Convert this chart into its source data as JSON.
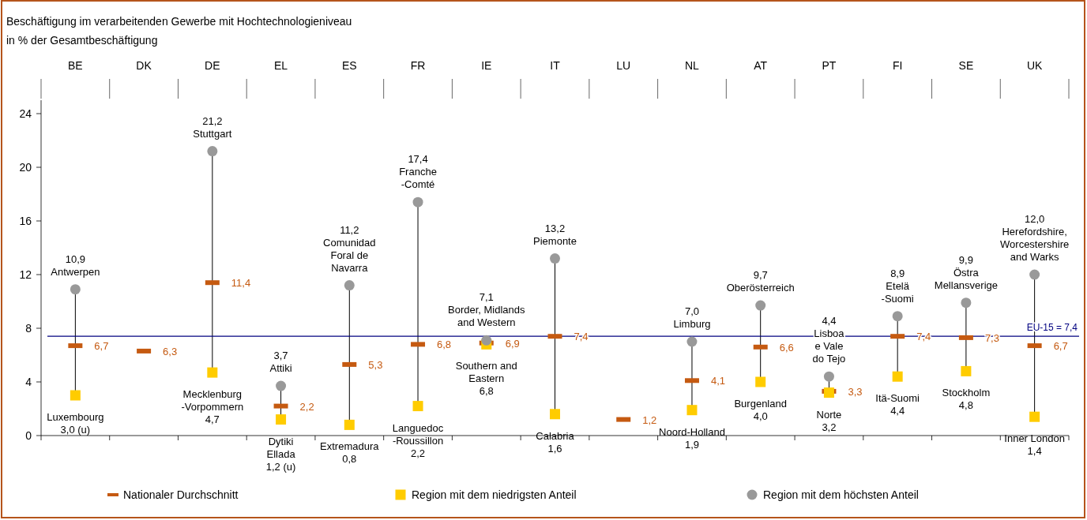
{
  "chart_data": {
    "type": "scatter",
    "title": "Beschäftigung im verarbeitenden Gewerbe mit Hochtechnologieniveau",
    "subtitle": "in % der Gesamtbeschäftigung",
    "categories": [
      "BE",
      "DK",
      "DE",
      "EL",
      "ES",
      "FR",
      "IE",
      "IT",
      "LU",
      "NL",
      "AT",
      "PT",
      "FI",
      "SE",
      "UK"
    ],
    "ylim": [
      0,
      25
    ],
    "yticks": [
      0,
      4,
      8,
      12,
      16,
      20,
      24
    ],
    "grid": false,
    "legend": "bottom",
    "series": [
      {
        "name": "Nationaler Durchschnitt",
        "color": "#c55a11",
        "values": [
          6.7,
          6.3,
          11.4,
          2.2,
          5.3,
          6.8,
          6.9,
          7.4,
          1.2,
          4.1,
          6.6,
          3.3,
          7.4,
          7.3,
          6.7
        ],
        "value_labels": [
          "6,7",
          "6,3",
          "11,4",
          "2,2",
          "5,3",
          "6,8",
          "6,9",
          "7,4",
          "1,2",
          "4,1",
          "6,6",
          "3,3",
          "7,4",
          "7,3",
          "6,7"
        ]
      },
      {
        "name": "Region mit dem niedrigsten Anteil",
        "marker": "square",
        "color": "#ffcc00",
        "values": [
          3.0,
          null,
          4.7,
          1.2,
          0.8,
          2.2,
          6.8,
          1.6,
          null,
          1.9,
          4.0,
          3.2,
          4.4,
          4.8,
          1.4
        ],
        "value_labels": [
          "Luxembourg\n3,0 (u)",
          null,
          "Mecklenburg\n-Vorpommern\n4,7",
          "Dytiki\nEllada\n1,2 (u)",
          "Extremadura\n0,8",
          "Languedoc\n-Roussillon\n2,2",
          "Southern and\nEastern\n6,8",
          "Calabria\n1,6",
          null,
          "Noord-Holland\n1,9",
          "Burgenland\n4,0",
          "Norte\n3,2",
          "Itä-Suomi\n4,4",
          "Stockholm\n4,8",
          "Inner London\n1,4"
        ]
      },
      {
        "name": "Region mit dem höchsten Anteil",
        "marker": "circle",
        "color": "#999999",
        "values": [
          10.9,
          null,
          21.2,
          3.7,
          11.2,
          17.4,
          7.1,
          13.2,
          null,
          7.0,
          9.7,
          4.4,
          8.9,
          9.9,
          12.0
        ],
        "value_labels": [
          "10,9\nAntwerpen",
          null,
          "21,2\nStuttgart",
          "3,7\nAttiki",
          "11,2\nComunidad\nForal de\nNavarra",
          "17,4\nFranche\n-Comté",
          "7,1\nBorder, Midlands\nand Western",
          "13,2\nPiemonte",
          null,
          "7,0\nLimburg",
          "9,7\nOberösterreich",
          "4,4\nLisboa\ne Vale\ndo Tejo",
          "8,9\nEtelä\n-Suomi",
          "9,9\nÖstra\nMellansverige",
          "12,0\nHerefordshire,\nWorcestershire\nand Warks"
        ]
      }
    ],
    "ref_lines": [
      {
        "axis": "y",
        "value": 7.4,
        "label": "EU-15 = 7,4",
        "color": "#000080"
      }
    ]
  }
}
